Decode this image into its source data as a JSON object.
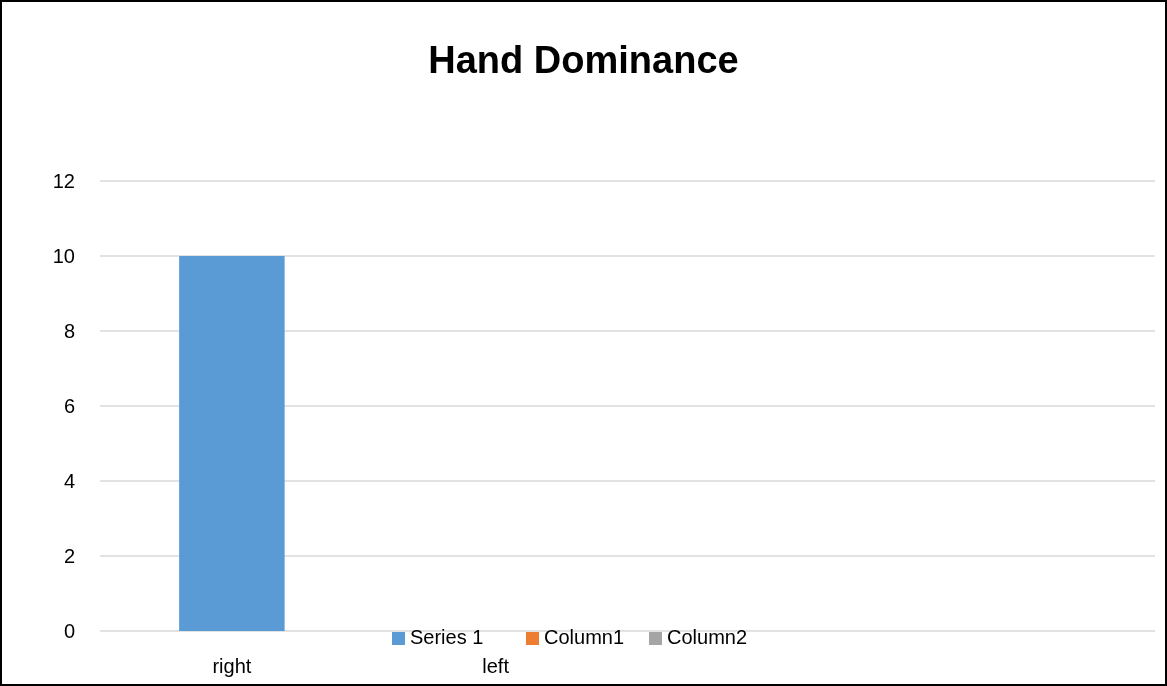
{
  "chart_data": {
    "type": "bar",
    "title": "Hand Dominance",
    "categories": [
      "right",
      "left",
      null,
      null
    ],
    "series": [
      {
        "name": "Series 1",
        "color": "#5b9bd5",
        "values": [
          10,
          null,
          null,
          null
        ]
      },
      {
        "name": "Column1",
        "color": "#ed7d31",
        "values": [
          null,
          null,
          null,
          null
        ]
      },
      {
        "name": "Column2",
        "color": "#a5a5a5",
        "values": [
          null,
          null,
          null,
          null
        ]
      }
    ],
    "ylim": [
      0,
      12
    ],
    "yticks": [
      0,
      2,
      4,
      6,
      8,
      10,
      12
    ],
    "grid": "y",
    "legend": "bottom"
  }
}
